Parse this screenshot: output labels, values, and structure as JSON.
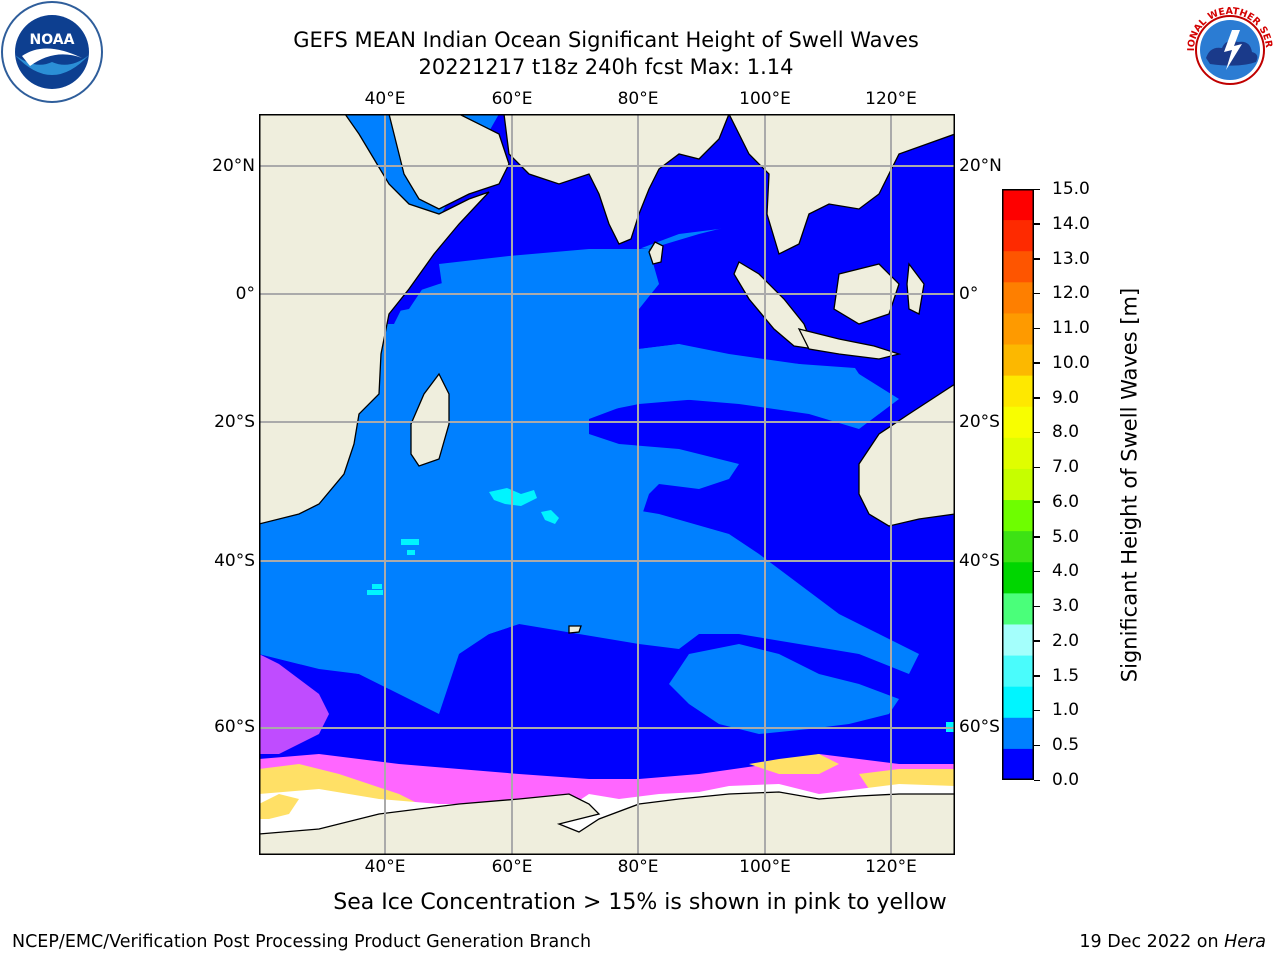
{
  "title": {
    "line1": "GEFS MEAN Indian Ocean Significant Height of Swell Waves",
    "line2": "20221217 t18z 240h fcst   Max: 1.14"
  },
  "axes": {
    "lon_top": [
      "40°E",
      "60°E",
      "80°E",
      "100°E",
      "120°E"
    ],
    "lon_bottom": [
      "40°E",
      "60°E",
      "80°E",
      "100°E",
      "120°E"
    ],
    "lat_left": [
      "20°N",
      "0°",
      "20°S",
      "40°S",
      "60°S"
    ],
    "lat_right": [
      "20°N",
      "0°",
      "20°S",
      "40°S",
      "60°S"
    ]
  },
  "colorbar": {
    "title": "Significant Height of Swell Waves [m]",
    "labels": [
      "15.0",
      "14.0",
      "13.0",
      "12.0",
      "11.0",
      "10.0",
      "9.0",
      "8.0",
      "7.0",
      "6.0",
      "5.0",
      "4.0",
      "3.0",
      "2.0",
      "1.5",
      "1.0",
      "0.5",
      "0.0"
    ],
    "colors_top_to_bottom": [
      "#fe0000",
      "#fe2a00",
      "#fe5500",
      "#fe7f00",
      "#fe9a00",
      "#fcb800",
      "#fee800",
      "#f8fe00",
      "#e0fe00",
      "#c6fe00",
      "#6efe00",
      "#3de214",
      "#00d600",
      "#4aff7a",
      "#a4fffc",
      "#4afcfc",
      "#00f5ff",
      "#0080ff",
      "#0000ff"
    ]
  },
  "map_colors": {
    "land": "#efeedd",
    "swell_0_to_0_5": "#0000fe",
    "swell_0_5_to_1_0": "#0080ff",
    "swell_1_0_to_1_5": "#00f4ff",
    "ice": "#ff66ff",
    "ice_high": "#ffe066"
  },
  "footer": {
    "note": "Sea Ice Concentration > 15% is shown in pink to yellow",
    "credit": "NCEP/EMC/Verification Post Processing Product Generation Branch",
    "date_prefix": "19 Dec 2022 on ",
    "machine": "Hera"
  },
  "logos": {
    "left": "noaa-logo",
    "left_text": "NOAA",
    "right": "nws-logo",
    "right_text": "NATIONAL WEATHER SERVICE"
  }
}
